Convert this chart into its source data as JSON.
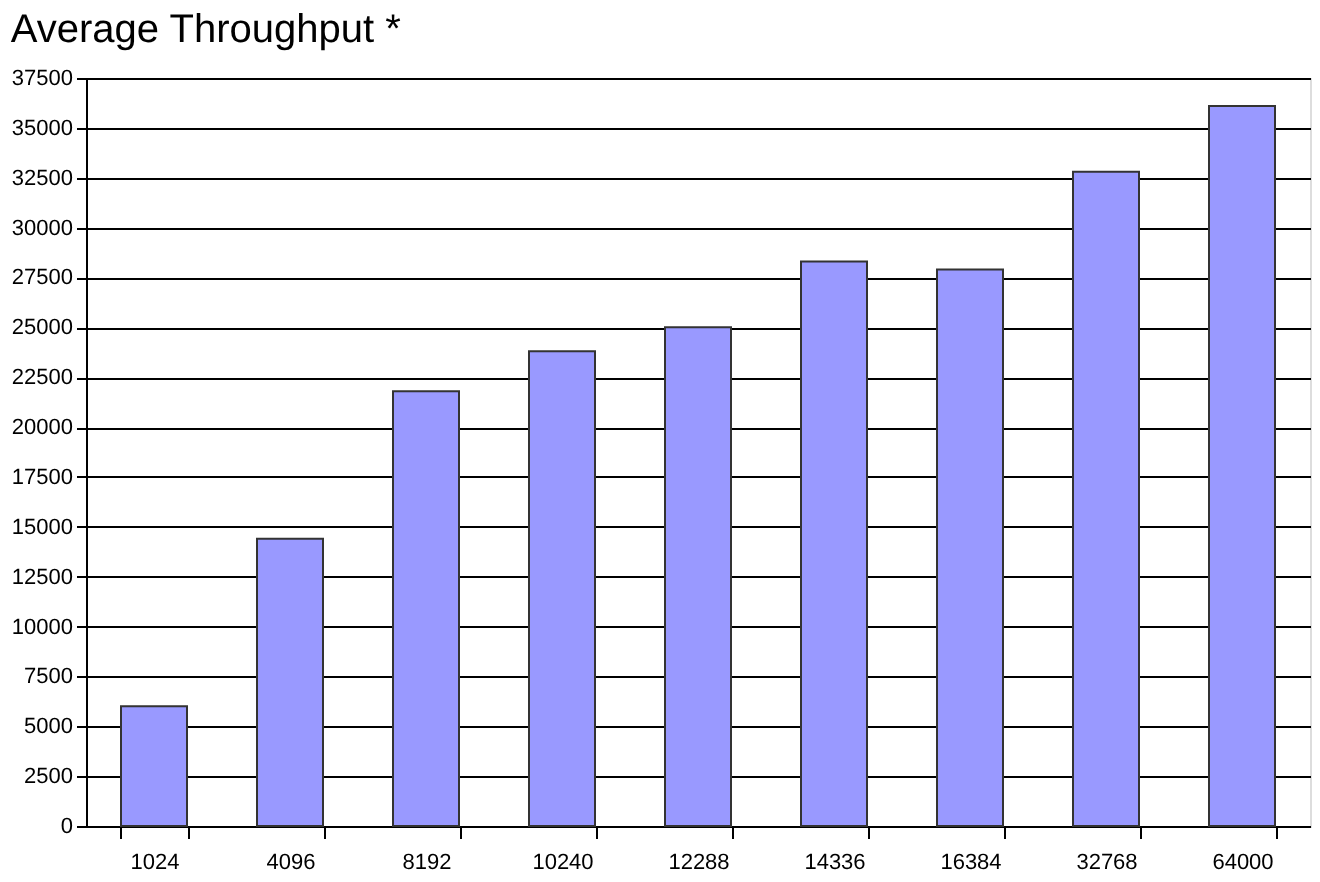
{
  "chart_data": {
    "type": "bar",
    "title": "Average Throughput *",
    "categories": [
      "1024",
      "4096",
      "8192",
      "10240",
      "12288",
      "14336",
      "16384",
      "32768",
      "64000"
    ],
    "values": [
      6000,
      14400,
      21800,
      23800,
      25000,
      28300,
      27900,
      32800,
      36100
    ],
    "color": "#9999ff",
    "ylim": [
      0,
      37500
    ],
    "yticks": [
      0,
      2500,
      5000,
      7500,
      10000,
      12500,
      15000,
      17500,
      20000,
      22500,
      25000,
      27500,
      30000,
      32500,
      35000,
      37500
    ],
    "grid": "y"
  }
}
